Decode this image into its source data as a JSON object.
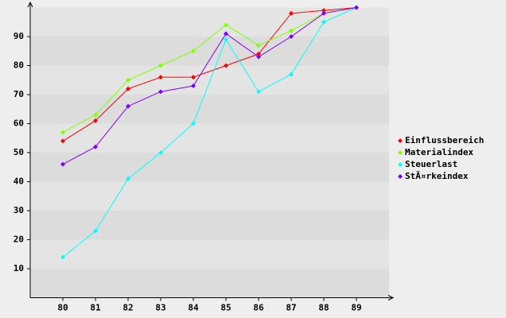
{
  "chart_data": {
    "type": "line",
    "categories": [
      "80",
      "81",
      "82",
      "83",
      "84",
      "85",
      "86",
      "87",
      "88",
      "89"
    ],
    "series": [
      {
        "name": "Einflussbereich",
        "color": "#ff0000",
        "values": [
          54,
          61,
          72,
          76,
          76,
          80,
          84,
          98,
          99,
          100
        ]
      },
      {
        "name": "Materialindex",
        "color": "#80ff00",
        "values": [
          57,
          63,
          75,
          80,
          85,
          94,
          87,
          92,
          98,
          100
        ]
      },
      {
        "name": "Steuerlast",
        "color": "#00ffff",
        "values": [
          14,
          23,
          41,
          50,
          60,
          89,
          71,
          77,
          95,
          100
        ]
      },
      {
        "name": "StÃ¤rkeindex",
        "color": "#8000ff",
        "values": [
          46,
          52,
          66,
          71,
          73,
          91,
          83,
          90,
          98,
          100
        ]
      }
    ],
    "ylim": [
      0,
      100
    ],
    "yticks": [
      10,
      20,
      30,
      40,
      50,
      60,
      70,
      80,
      90
    ],
    "grid": true,
    "legend": "right"
  }
}
